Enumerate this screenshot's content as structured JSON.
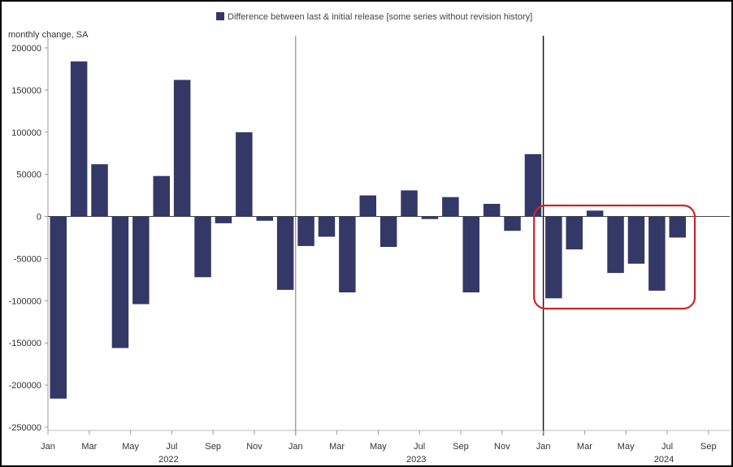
{
  "chart_data": {
    "type": "bar",
    "legend": "Difference between last & initial release [some series without revision history]",
    "ylabel": "monthly change, SA",
    "ylim": [
      -250000,
      200000
    ],
    "yticks": [
      200000,
      150000,
      100000,
      50000,
      0,
      -50000,
      -100000,
      -150000,
      -200000,
      -250000
    ],
    "x_tick_labels": [
      "Jan",
      "Mar",
      "May",
      "Jul",
      "Sep",
      "Nov",
      "Jan",
      "Mar",
      "May",
      "Jul",
      "Sep",
      "Nov",
      "Jan",
      "Mar",
      "May",
      "Jul",
      "Sep"
    ],
    "years": [
      "2022",
      "2023",
      "2024"
    ],
    "series": [
      {
        "name": "Difference between last & initial release [some series without revision history]",
        "color": "#333866",
        "values": [
          -216000,
          184000,
          62000,
          -156000,
          -104000,
          48000,
          162000,
          -72000,
          -8000,
          100000,
          -5000,
          -87000,
          -35000,
          -24000,
          -90000,
          25000,
          -36000,
          31000,
          -3000,
          23000,
          -90000,
          15000,
          -17000,
          74000,
          -97000,
          -39000,
          7000,
          -67000,
          -56000,
          -88000,
          -25000
        ]
      }
    ],
    "highlight": {
      "color": "#c8262c",
      "from_month": "Jan 2024",
      "to_month": "Jul 2024"
    }
  }
}
